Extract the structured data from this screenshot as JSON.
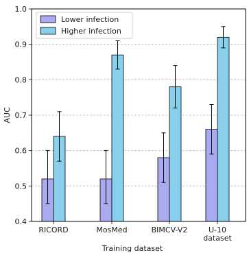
{
  "chart_data": {
    "type": "bar",
    "xlabel": "Training dataset",
    "ylabel": "AUC",
    "ylim": [
      0.4,
      1.0
    ],
    "yticks": [
      "0.4",
      "0.5",
      "0.6",
      "0.7",
      "0.8",
      "0.9",
      "1.0"
    ],
    "grid": "horizontal dashed",
    "legend_position": "top-left",
    "categories": [
      [
        "RICORD"
      ],
      [
        "MosMed"
      ],
      [
        "BIMCV-V2"
      ],
      [
        "U-10",
        "dataset"
      ]
    ],
    "series": [
      {
        "name": "Lower infection",
        "color": "#aaaaf0",
        "values": [
          0.52,
          0.52,
          0.58,
          0.66
        ],
        "err_low": [
          0.45,
          0.45,
          0.51,
          0.59
        ],
        "err_high": [
          0.6,
          0.6,
          0.65,
          0.73
        ]
      },
      {
        "name": "Higher infection",
        "color": "#88cfec",
        "values": [
          0.64,
          0.87,
          0.78,
          0.92
        ],
        "err_low": [
          0.57,
          0.83,
          0.72,
          0.89
        ],
        "err_high": [
          0.71,
          0.91,
          0.84,
          0.95
        ]
      }
    ]
  }
}
